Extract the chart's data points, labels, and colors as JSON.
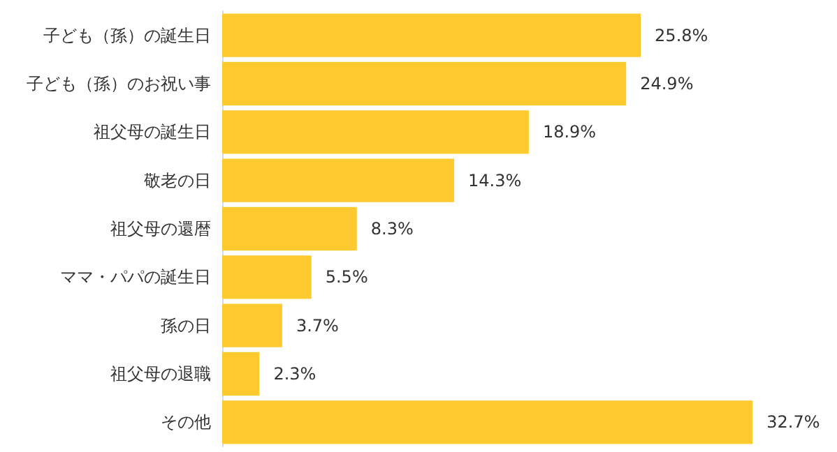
{
  "chart_data": {
    "type": "bar",
    "orientation": "horizontal",
    "categories": [
      "子ども（孫）の誕生日",
      "子ども（孫）のお祝い事",
      "祖父母の誕生日",
      "敬老の日",
      "祖父母の還暦",
      "ママ・パパの誕生日",
      "孫の日",
      "祖父母の退職",
      "その他"
    ],
    "values": [
      25.8,
      24.9,
      18.9,
      14.3,
      8.3,
      5.5,
      3.7,
      2.3,
      32.7
    ],
    "value_labels": [
      "25.8%",
      "24.9%",
      "18.9%",
      "14.3%",
      "8.3%",
      "5.5%",
      "3.7%",
      "2.3%",
      "32.7%"
    ],
    "color": "#ffca30",
    "tick_labels": "y"
  }
}
